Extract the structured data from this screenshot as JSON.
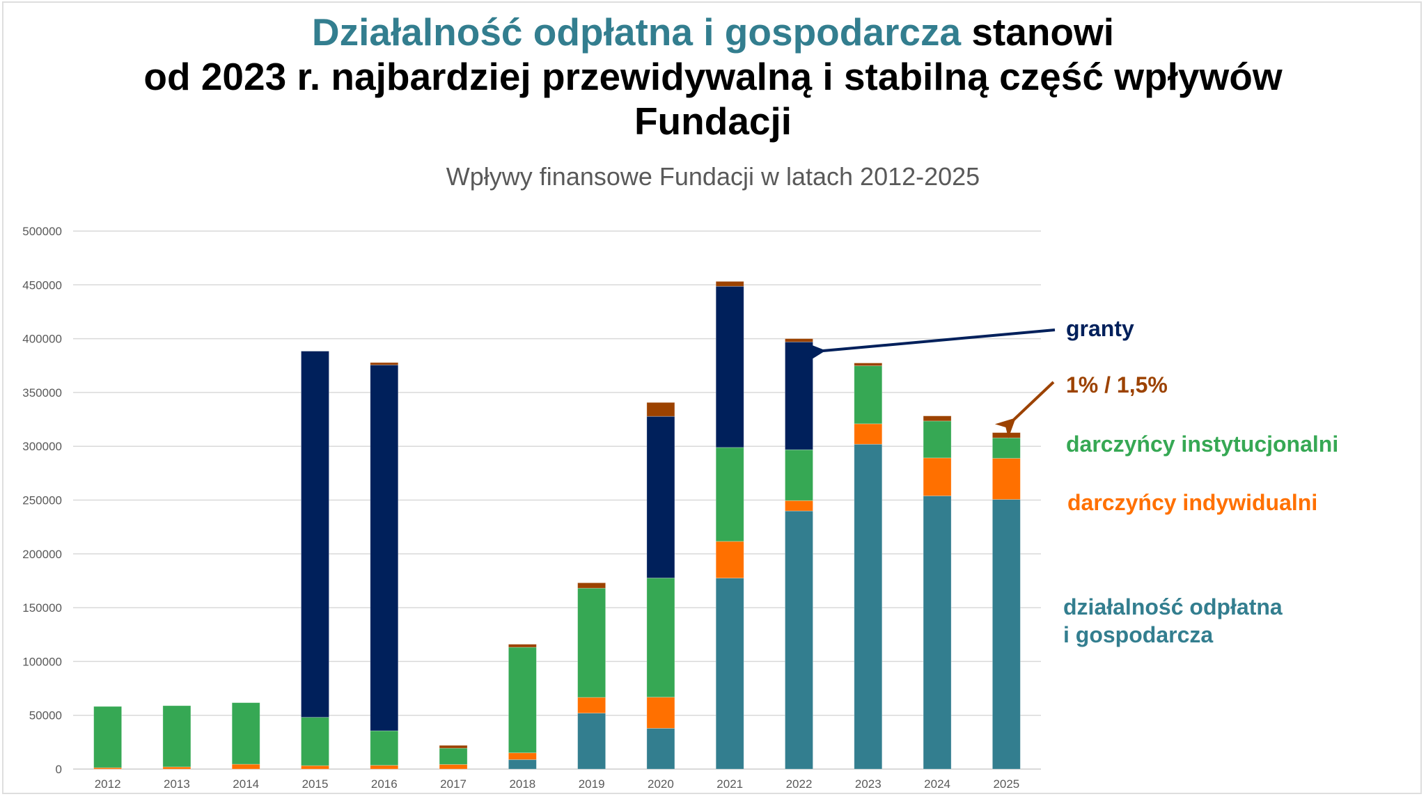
{
  "headline": {
    "accent": "Działalność odpłatna i gospodarcza",
    "rest_line1": " stanowi",
    "line2": "od 2023 r. najbardziej przewidywalną i stabilną część wpływów",
    "line3": "Fundacji"
  },
  "colors": {
    "teal": "#337e8f",
    "orange": "#ff7000",
    "green": "#36a854",
    "navy": "#00205b",
    "brown": "#9c4200",
    "gridline": "#d9d9d9",
    "tick_text": "#595959"
  },
  "annotations": {
    "granty": "granty",
    "one_percent": "1% / 1,5%",
    "instytucjonalni": "darczyńcy instytucjonalni",
    "indywidualni": "darczyńcy indywidualni",
    "odplatna_line1": "działalność odpłatna",
    "odplatna_line2": "i gospodarcza"
  },
  "chart_data": {
    "type": "bar",
    "stacked": true,
    "title": "Wpływy finansowe Fundacji w latach 2012-2025",
    "xlabel": "",
    "ylabel": "",
    "ylim": [
      0,
      500000
    ],
    "yticks": [
      0,
      50000,
      100000,
      150000,
      200000,
      250000,
      300000,
      350000,
      400000,
      450000,
      500000
    ],
    "grid": true,
    "legend": "right (as colored text annotations)",
    "categories": [
      "2012",
      "2013",
      "2014",
      "2015",
      "2016",
      "2017",
      "2018",
      "2019",
      "2020",
      "2021",
      "2022",
      "2023",
      "2024",
      "2025"
    ],
    "series": [
      {
        "name": "działalność odpłatna i gospodarcza",
        "color": "#337e8f",
        "values": [
          0,
          0,
          0,
          0,
          0,
          0,
          8800,
          52000,
          37900,
          177500,
          239900,
          301900,
          253900,
          250600
        ]
      },
      {
        "name": "darczyńcy indywidualni",
        "color": "#ff7000",
        "values": [
          1300,
          2000,
          4500,
          3200,
          3500,
          4300,
          6300,
          14600,
          28900,
          34100,
          9600,
          19000,
          35300,
          38200
        ]
      },
      {
        "name": "darczyńcy instytucjonalni",
        "color": "#36a854",
        "values": [
          56900,
          56900,
          57200,
          44900,
          32100,
          15100,
          98100,
          101500,
          110800,
          87300,
          47300,
          53900,
          34300,
          19000
        ]
      },
      {
        "name": "granty",
        "color": "#00205b",
        "values": [
          0,
          0,
          0,
          340300,
          340000,
          0,
          0,
          0,
          150200,
          149800,
          100200,
          0,
          0,
          0
        ]
      },
      {
        "name": "1% / 1,5%",
        "color": "#9c4200",
        "values": [
          0,
          0,
          0,
          0,
          2200,
          2600,
          2800,
          5000,
          12900,
          4500,
          3000,
          2600,
          4700,
          4900
        ]
      }
    ],
    "arrows": [
      {
        "label": "granty",
        "points_to": "2022"
      },
      {
        "label": "1% / 1,5%",
        "points_to": "2025"
      }
    ]
  }
}
